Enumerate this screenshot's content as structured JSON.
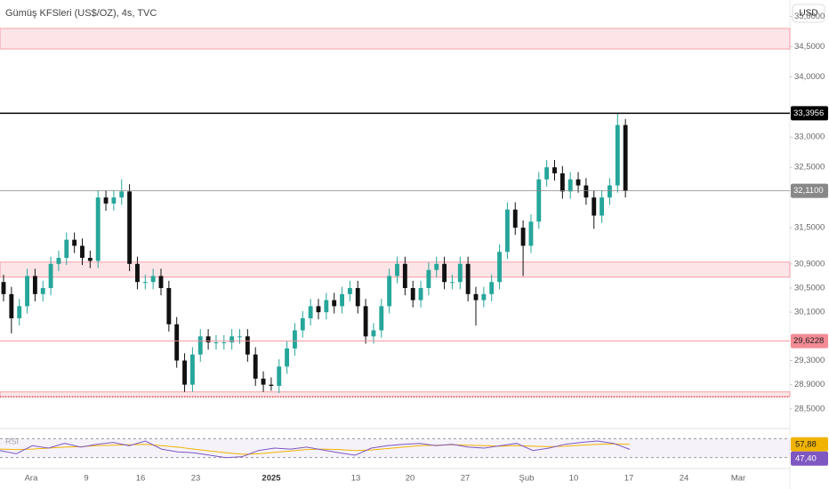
{
  "chart_data": {
    "type": "candlestick",
    "title": "Gümüş KFSleri (US$/OZ), 4s, TVC",
    "currency": "USD",
    "up_color": "#26a69a",
    "down_color": "#111111",
    "ylim": [
      28.35,
      35.05
    ],
    "yticks": [
      {
        "value": 35.0,
        "label": "35,0000"
      },
      {
        "value": 34.5,
        "label": "34,5000"
      },
      {
        "value": 34.0,
        "label": "34,0000"
      },
      {
        "value": 33.0,
        "label": "33,0000"
      },
      {
        "value": 32.5,
        "label": "32,5000"
      },
      {
        "value": 31.5,
        "label": "31,5000"
      },
      {
        "value": 30.9,
        "label": "30,9000"
      },
      {
        "value": 30.5,
        "label": "30,5000"
      },
      {
        "value": 30.1,
        "label": "30,1000"
      },
      {
        "value": 29.3,
        "label": "29,3000"
      },
      {
        "value": 28.9,
        "label": "28,9000"
      },
      {
        "value": 28.5,
        "label": "28,5000"
      }
    ],
    "open": [
      30.6,
      30.4,
      30.0,
      30.2,
      30.7,
      30.4,
      30.5,
      30.9,
      31.0,
      31.3,
      31.2,
      31.0,
      30.95,
      32.0,
      31.9,
      32.0,
      32.1,
      30.9,
      30.6,
      30.6,
      30.7,
      30.5,
      29.9,
      29.3,
      28.9,
      29.4,
      29.7,
      29.6,
      29.6,
      29.6,
      29.7,
      29.7,
      29.4,
      29.0,
      28.9,
      28.88,
      29.2,
      29.5,
      29.8,
      30.0,
      30.2,
      30.1,
      30.3,
      30.2,
      30.4,
      30.5,
      30.2,
      29.7,
      29.8,
      30.2,
      30.7,
      30.9,
      30.5,
      30.3,
      30.5,
      30.8,
      30.9,
      30.6,
      30.6,
      30.9,
      30.4,
      30.3,
      30.4,
      30.6,
      31.1,
      31.8,
      31.5,
      31.2,
      31.6,
      32.3,
      32.5,
      32.4,
      32.1,
      32.3,
      32.2,
      32.0,
      31.7,
      32.0,
      32.2,
      33.2
    ],
    "high": [
      30.72,
      30.52,
      30.32,
      30.82,
      30.82,
      30.62,
      31.02,
      31.12,
      31.42,
      31.42,
      31.32,
      31.12,
      32.12,
      32.12,
      32.12,
      32.3,
      32.22,
      31.02,
      30.72,
      30.82,
      30.82,
      30.62,
      30.02,
      29.42,
      29.52,
      29.82,
      29.82,
      29.72,
      29.72,
      29.82,
      29.82,
      29.82,
      29.52,
      29.12,
      29.02,
      29.32,
      29.62,
      29.92,
      30.12,
      30.32,
      30.32,
      30.42,
      30.42,
      30.52,
      30.62,
      30.62,
      30.32,
      29.92,
      30.32,
      30.82,
      31.02,
      31.02,
      30.62,
      30.62,
      30.92,
      31.02,
      31.02,
      30.72,
      31.02,
      31.02,
      30.52,
      30.52,
      30.72,
      31.22,
      31.92,
      31.92,
      31.62,
      31.72,
      32.42,
      32.62,
      32.62,
      32.52,
      32.42,
      32.42,
      32.32,
      32.12,
      32.12,
      32.32,
      33.4,
      33.3
    ],
    "low": [
      30.28,
      29.75,
      29.88,
      30.08,
      30.28,
      30.28,
      30.38,
      30.78,
      30.88,
      31.08,
      30.88,
      30.83,
      30.83,
      31.78,
      31.78,
      31.88,
      30.78,
      30.48,
      30.48,
      30.48,
      30.38,
      29.78,
      29.18,
      28.78,
      28.78,
      29.28,
      29.48,
      29.48,
      29.48,
      29.48,
      29.58,
      29.28,
      28.88,
      28.78,
      28.8,
      28.76,
      29.08,
      29.38,
      29.68,
      29.88,
      29.98,
      29.98,
      30.08,
      30.08,
      30.28,
      30.08,
      29.58,
      29.58,
      29.68,
      30.08,
      30.58,
      30.38,
      30.18,
      30.18,
      30.38,
      30.68,
      30.48,
      30.48,
      30.48,
      30.28,
      29.88,
      30.18,
      30.28,
      30.48,
      30.98,
      31.38,
      30.7,
      31.08,
      31.48,
      32.18,
      32.28,
      31.98,
      31.98,
      32.08,
      31.88,
      31.48,
      31.58,
      31.88,
      32.08,
      32.0
    ],
    "close": [
      30.4,
      30.0,
      30.2,
      30.7,
      30.4,
      30.5,
      30.9,
      31.0,
      31.3,
      31.2,
      31.0,
      30.95,
      32.0,
      31.9,
      32.0,
      32.1,
      30.9,
      30.6,
      30.6,
      30.7,
      30.5,
      29.9,
      29.3,
      28.9,
      29.4,
      29.7,
      29.6,
      29.6,
      29.6,
      29.7,
      29.7,
      29.4,
      29.0,
      28.9,
      28.88,
      29.2,
      29.5,
      29.8,
      30.0,
      30.2,
      30.1,
      30.3,
      30.2,
      30.4,
      30.5,
      30.2,
      29.7,
      29.8,
      30.2,
      30.7,
      30.9,
      30.5,
      30.3,
      30.5,
      30.8,
      30.9,
      30.6,
      30.6,
      30.9,
      30.4,
      30.3,
      30.4,
      30.6,
      31.1,
      31.8,
      31.5,
      31.2,
      31.6,
      32.3,
      32.5,
      32.4,
      32.1,
      32.3,
      32.2,
      32.0,
      31.7,
      32.0,
      32.2,
      33.2,
      32.11
    ],
    "zones": [
      {
        "from": 34.46,
        "to": 34.8
      },
      {
        "from": 30.68,
        "to": 30.93
      },
      {
        "from": 28.7,
        "to": 28.78
      }
    ],
    "price_lines": [
      {
        "value": 33.3956,
        "label": "33,3956",
        "color": "#000000"
      },
      {
        "value": 32.11,
        "label": "32,1100",
        "color": "#888888"
      },
      {
        "value": 29.6228,
        "label": "29,6228",
        "color": "#f28b95"
      }
    ],
    "x_labels": [
      "Ara",
      "9",
      "16",
      "23",
      "2025",
      "13",
      "20",
      "27",
      "Şub",
      "10",
      "17",
      "24",
      "Mar"
    ],
    "rsi": {
      "name": "RSI",
      "ylim": [
        20,
        80
      ],
      "bands": [
        70,
        30
      ],
      "series": [
        {
          "color": "#7e57c2",
          "values": [
            45,
            38,
            55,
            50,
            60,
            52,
            58,
            62,
            55,
            65,
            48,
            42,
            40,
            35,
            30,
            32,
            45,
            50,
            48,
            52,
            46,
            40,
            35,
            50,
            55,
            58,
            60,
            55,
            58,
            52,
            50,
            55,
            60,
            45,
            50,
            58,
            62,
            65,
            60,
            47.4
          ],
          "value_label": "47,40"
        },
        {
          "color": "#f0b400",
          "values": [
            48,
            47,
            48,
            50,
            52,
            53,
            55,
            56,
            57,
            58,
            55,
            52,
            48,
            44,
            40,
            37,
            38,
            41,
            44,
            47,
            48,
            47,
            45,
            46,
            49,
            52,
            55,
            56,
            57,
            56,
            55,
            54,
            55,
            54,
            53,
            54,
            56,
            58,
            59,
            57.88
          ],
          "value_label": "57,88"
        }
      ]
    }
  }
}
